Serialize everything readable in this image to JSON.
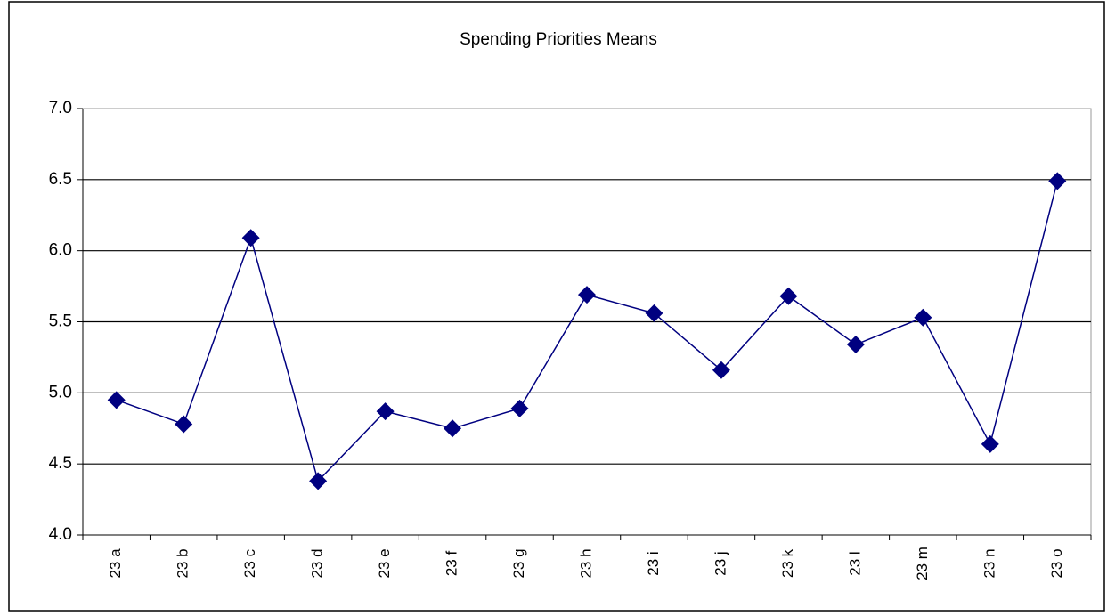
{
  "chart_data": {
    "type": "line",
    "title": "Spending Priorities Means",
    "categories": [
      "23 a",
      "23 b",
      "23 c",
      "23 d",
      "23 e",
      "23 f",
      "23 g",
      "23 h",
      "23 i",
      "23 j",
      "23 k",
      "23 l",
      "23 m",
      "23 n",
      "23 o"
    ],
    "values": [
      4.95,
      4.78,
      6.09,
      4.38,
      4.87,
      4.75,
      4.89,
      5.69,
      5.56,
      5.16,
      5.68,
      5.34,
      5.53,
      4.64,
      6.49
    ],
    "color": "#000080",
    "ylim": [
      4,
      7
    ],
    "yticks": [
      {
        "value": 4,
        "label": "4.0"
      },
      {
        "value": 4.5,
        "label": "4.5"
      },
      {
        "value": 5,
        "label": "5.0"
      },
      {
        "value": 5.5,
        "label": "5.5"
      },
      {
        "value": 6,
        "label": "6.0"
      },
      {
        "value": 6.5,
        "label": "6.5"
      },
      {
        "value": 7,
        "label": "7.0"
      }
    ],
    "grid": true
  }
}
